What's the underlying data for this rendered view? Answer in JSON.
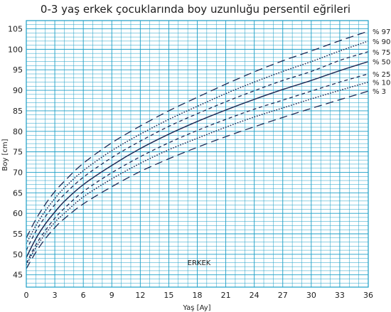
{
  "chart_data": {
    "type": "line",
    "title": "0-3 yaş erkek çocuklarında boy uzunluğu persentil eğrileri",
    "xlabel": "Yaş [Ay]",
    "ylabel": "Boy [cm]",
    "xlim": [
      0,
      36
    ],
    "ylim": [
      42,
      107
    ],
    "x_ticks": [
      0,
      3,
      6,
      9,
      12,
      15,
      18,
      21,
      24,
      27,
      30,
      33,
      36
    ],
    "y_ticks": [
      45,
      50,
      55,
      60,
      65,
      70,
      75,
      80,
      85,
      90,
      95,
      100,
      105
    ],
    "grid": true,
    "legend_position": "right",
    "annotation": "ERKEK",
    "x": [
      0,
      1,
      2,
      3,
      4,
      6,
      9,
      12,
      15,
      18,
      21,
      24,
      27,
      30,
      33,
      36
    ],
    "series": [
      {
        "name": "% 97",
        "style": "long-dash",
        "values": [
          54,
          58.5,
          62.2,
          65.3,
          67.8,
          72.2,
          77.2,
          81.3,
          85,
          88.3,
          91.5,
          94.5,
          97.2,
          99.6,
          102.1,
          104.4
        ]
      },
      {
        "name": "% 90",
        "style": "dotted",
        "values": [
          52.6,
          57,
          60.6,
          63.6,
          66.2,
          70.4,
          75.3,
          79.3,
          82.9,
          86.1,
          89.2,
          92,
          94.6,
          97,
          99.6,
          102
        ]
      },
      {
        "name": "% 75",
        "style": "dashed",
        "values": [
          51,
          55.6,
          59.2,
          62.1,
          64.6,
          68.8,
          73.6,
          77.6,
          81.2,
          84.3,
          87.2,
          89.9,
          92.4,
          94.6,
          97.3,
          99.4
        ]
      },
      {
        "name": "% 50",
        "style": "solid",
        "values": [
          49.2,
          53.8,
          57.4,
          60.3,
          62.9,
          67,
          71.7,
          75.8,
          79.3,
          82.4,
          85.2,
          87.8,
          90.2,
          92.4,
          94.8,
          97
        ]
      },
      {
        "name": "% 25",
        "style": "dashed",
        "values": [
          47.8,
          52.3,
          55.8,
          58.8,
          61.2,
          65.3,
          69.9,
          73.8,
          77.2,
          80.2,
          82.9,
          85.4,
          87.6,
          89.8,
          92,
          94
        ]
      },
      {
        "name": "% 10",
        "style": "dotted",
        "values": [
          47.4,
          51.6,
          55,
          57.8,
          60,
          64,
          68.4,
          72.2,
          75.5,
          78.3,
          81,
          83.5,
          85.7,
          87.9,
          90,
          92
        ]
      },
      {
        "name": "% 3",
        "style": "long-dash",
        "values": [
          46.5,
          50.5,
          53.8,
          56.5,
          58.7,
          62.3,
          66.5,
          70.2,
          73.3,
          76.1,
          78.7,
          81.1,
          83.4,
          85.6,
          87.7,
          89.8
        ]
      }
    ]
  }
}
